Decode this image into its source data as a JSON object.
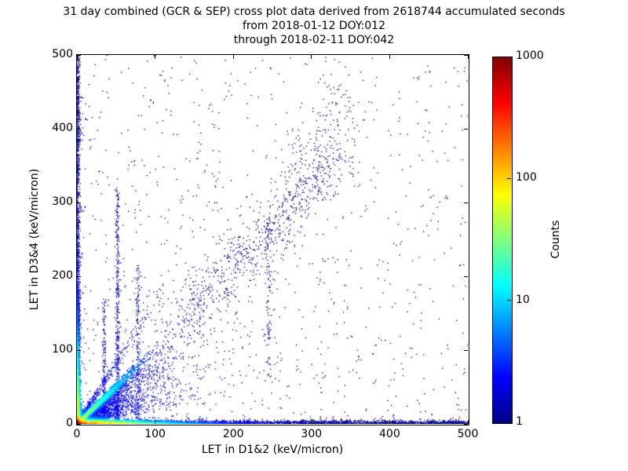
{
  "title": {
    "line1": "31 day combined (GCR & SEP) cross plot data derived from 2618744 accumulated seconds",
    "line2": "from 2018-01-12 DOY:012",
    "line3": "through 2018-02-11 DOY:042"
  },
  "axes": {
    "xlabel": "LET in D1&2 (keV/micron)",
    "ylabel": "LET in D3&4 (keV/micron)",
    "xticks": [
      0,
      100,
      200,
      300,
      400,
      500
    ],
    "yticks": [
      0,
      100,
      200,
      300,
      400,
      500
    ],
    "xlim": [
      0,
      500
    ],
    "ylim": [
      0,
      500
    ]
  },
  "colorbar": {
    "label": "Counts",
    "scale": "log",
    "range": [
      1,
      1000
    ],
    "tick_labels": [
      "1000",
      "100",
      "10",
      "1"
    ],
    "tick_fractions_from_top": [
      0,
      0.3333,
      0.6667,
      1
    ],
    "colormap": "jet",
    "stops": [
      "#000083",
      "#0000ff",
      "#00ffff",
      "#ffff00",
      "#ff0000",
      "#800000"
    ],
    "stop_positions": [
      0,
      0.125,
      0.375,
      0.625,
      0.875,
      1
    ]
  },
  "chart_data": {
    "type": "scatter",
    "subtype": "2d-histogram-cross-plot",
    "title": "31 day combined (GCR & SEP) cross plot data derived from 2618744 accumulated seconds",
    "subtitle": [
      "from 2018-01-12 DOY:012",
      "through 2018-02-11 DOY:042"
    ],
    "xlabel": "LET in D1&2 (keV/micron)",
    "ylabel": "LET in D3&4 (keV/micron)",
    "xlim": [
      0,
      500
    ],
    "ylim": [
      0,
      500
    ],
    "color_scale": "log counts, jet colormap, 1 to 1000",
    "accumulated_seconds": 2618744,
    "structures": [
      "intense red/orange core at origin (counts near 1000 within ~5 keV/micron of 0,0)",
      "bright cyan-green 1:1 diagonal streak from origin fading by ~(45,45), blue diagonal continuing clumpily toward (330,360)",
      "dense blue/cyan horizontal band hugging y=0 across full x range, hot colored (orange-yellow-green) out to x~100",
      "dense blue/cyan vertical band hugging x=0 across full y range, warm colored near bottom",
      "blue scatter fan filling triangle below the diagonal out to x~120",
      "faint steeper diagonal (slope ~1.6) up to ~(100,165)",
      "vertical streaks near x=35, x=52, x=78, and dotted streak near x=245",
      "sparse isolated dark-blue points over whole plane, thinning toward upper right"
    ],
    "render": {
      "seed": 20180112,
      "density_model": {
        "base": 1,
        "core": {
          "amp": 1000,
          "sx": 2.6,
          "sy": 2.6
        },
        "bottom_band": {
          "amp": 420,
          "sy": 1.9,
          "decay_x": 38
        },
        "left_band": {
          "amp": 180,
          "sx": 1.7,
          "decay_y": 40
        },
        "diagonal": {
          "amp": 60,
          "width0": 1.6,
          "width_slope": 0.055,
          "decay": 26
        },
        "cloud": {
          "amp": 2.2,
          "decay": 110
        }
      },
      "components": [
        {
          "type": "uniform_sprinkle",
          "n": 340
        },
        {
          "type": "falloff_sprinkle",
          "n": 1500,
          "decay": 420,
          "floor": 0.1
        },
        {
          "type": "left_tufts",
          "tufts": 12,
          "pts": 8,
          "mean_x": 4,
          "spread_y": 1.2
        },
        {
          "type": "vertical_streak",
          "x": 35,
          "spread": 1.2,
          "n": 190,
          "y0": 0,
          "y1": 170,
          "pow": 1.3
        },
        {
          "type": "vertical_streak",
          "x": 52,
          "spread": 1.4,
          "n": 430,
          "y0": 0,
          "y1": 320,
          "pow": 1.6
        },
        {
          "type": "vertical_streak",
          "x": 78,
          "spread": 1.5,
          "n": 175,
          "y0": 0,
          "y1": 215,
          "pow": 1.5
        },
        {
          "type": "vertical_streak",
          "x": 245,
          "spread": 2.2,
          "n": 85,
          "y0": 55,
          "y1": 275,
          "pow": 1.0
        },
        {
          "type": "clump_band",
          "clumps": [
            [
              150,
              70
            ],
            [
              180,
              60
            ],
            [
              212,
              90
            ],
            [
              248,
              80
            ],
            [
              278,
              60
            ],
            [
              308,
              50
            ],
            [
              335,
              35
            ]
          ],
          "spread_x": 14,
          "spread_y": 16,
          "yfactor": 1.08,
          "bridge_n": 260,
          "bridge_t0": 115,
          "bridge_t1": 340
        },
        {
          "type": "upper_ext",
          "n": 150,
          "x0": 265,
          "x1": 350,
          "slope": 1.25,
          "noise": 28
        },
        {
          "type": "steep_diag",
          "n": 380,
          "slope": 1.62,
          "exp": 30,
          "clip": 110,
          "w0": 2,
          "wslope": 0.06
        },
        {
          "type": "diag_fan",
          "n": 3100,
          "exp": 40,
          "fmin": 0.15,
          "fmax": 1.05,
          "noise": 3
        },
        {
          "type": "diag_streak",
          "n": 1550,
          "exp": 20,
          "clip": 480,
          "w0": 0.8,
          "wslope": 0.05
        },
        {
          "type": "left_band",
          "n": 2700,
          "exp_y": 55,
          "frac_exp": 0.62,
          "sx": 1.8
        },
        {
          "type": "bottom_tufts",
          "tufts": 28,
          "pts": 12,
          "mean_y": 3,
          "spread_x": 1.6
        },
        {
          "type": "bottom_band",
          "n": 4300,
          "exp_x": 45,
          "frac_exp": 0.58,
          "sy": 2.2
        },
        {
          "type": "core",
          "n": 3200,
          "mean": 4
        }
      ]
    }
  }
}
